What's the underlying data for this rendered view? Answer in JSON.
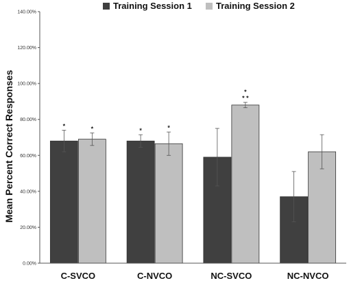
{
  "chart_data": {
    "type": "bar",
    "categories": [
      "C-SVCO",
      "C-NVCO",
      "NC-SVCO",
      "NC-NVCO"
    ],
    "series": [
      {
        "name": "Training Session 1",
        "color": "#404040",
        "values": [
          68.0,
          68.0,
          59.0,
          37.0
        ],
        "error": [
          6.0,
          3.5,
          16.0,
          14.0
        ],
        "annotations": [
          "*",
          "*",
          "",
          ""
        ]
      },
      {
        "name": "Training Session 2",
        "color": "#bfbfbf",
        "values": [
          69.0,
          66.5,
          88.0,
          62.0
        ],
        "error": [
          3.5,
          6.5,
          1.5,
          9.5
        ],
        "annotations": [
          "*",
          "*",
          "*\n* *",
          ""
        ]
      }
    ],
    "y_ticks": [
      "0.00%",
      "20.00%",
      "40.00%",
      "60.00%",
      "80.00%",
      "100.00%",
      "120.00%",
      "140.00%"
    ],
    "ylim": [
      0,
      140
    ],
    "ylabel": "Mean Percent Correct Responses",
    "xlabel": "",
    "title": "",
    "legend_position": "top",
    "grid": false
  }
}
